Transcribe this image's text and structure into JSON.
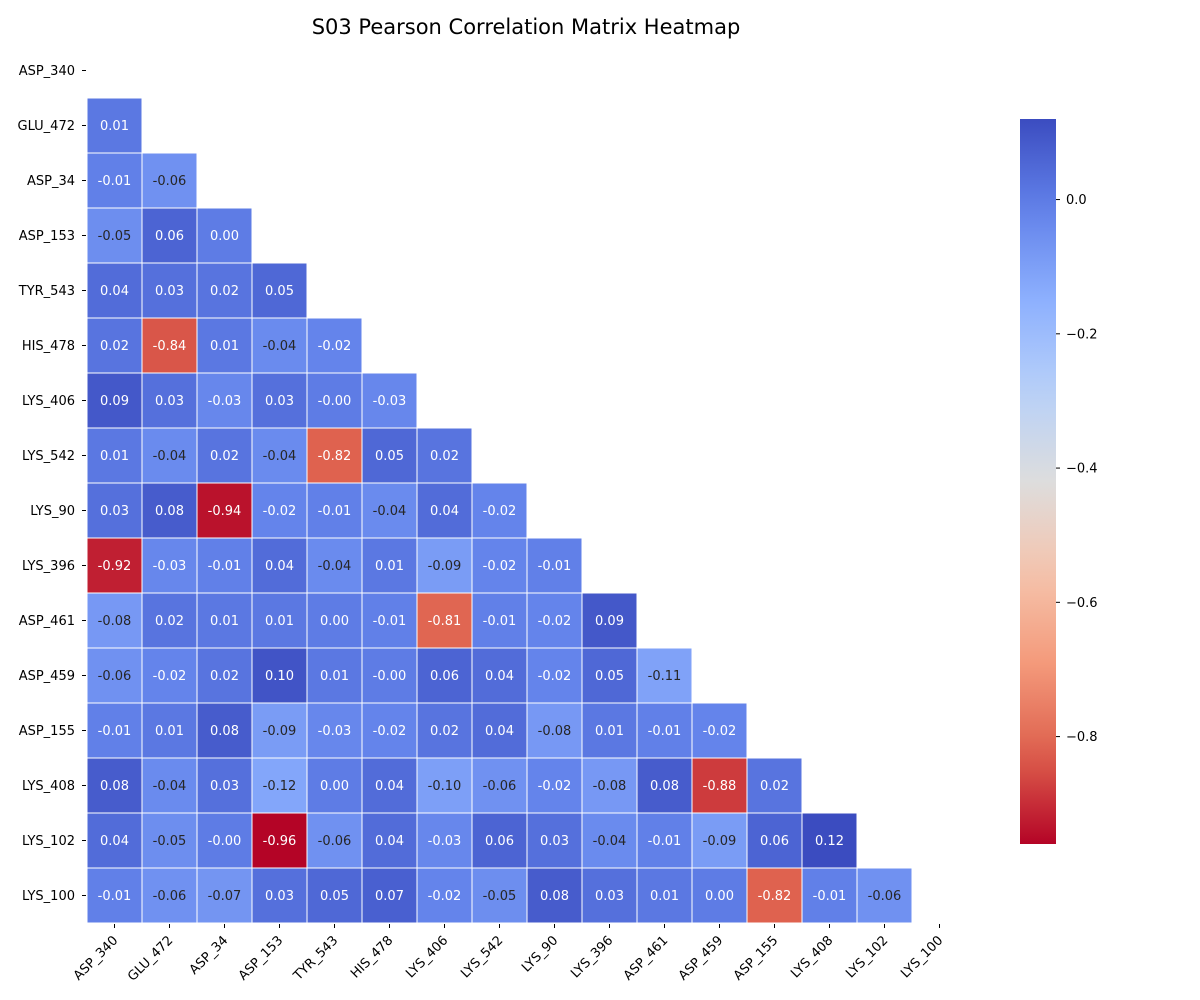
{
  "chart_data": {
    "type": "heatmap",
    "title": "S03 Pearson Correlation Matrix Heatmap",
    "xlabel": "",
    "ylabel": "",
    "labels": [
      "ASP_340",
      "GLU_472",
      "ASP_34",
      "ASP_153",
      "TYR_543",
      "HIS_478",
      "LYS_406",
      "LYS_542",
      "LYS_90",
      "LYS_396",
      "ASP_461",
      "ASP_459",
      "ASP_155",
      "LYS_408",
      "LYS_102",
      "LYS_100"
    ],
    "lower_triangle": [
      [],
      [
        "0.01"
      ],
      [
        "-0.01",
        "-0.06"
      ],
      [
        "-0.05",
        "0.06",
        "0.00"
      ],
      [
        "0.04",
        "0.03",
        "0.02",
        "0.05"
      ],
      [
        "0.02",
        "-0.84",
        "0.01",
        "-0.04",
        "-0.02"
      ],
      [
        "0.09",
        "0.03",
        "-0.03",
        "0.03",
        "-0.00",
        "-0.03"
      ],
      [
        "0.01",
        "-0.04",
        "0.02",
        "-0.04",
        "-0.82",
        "0.05",
        "0.02"
      ],
      [
        "0.03",
        "0.08",
        "-0.94",
        "-0.02",
        "-0.01",
        "-0.04",
        "0.04",
        "-0.02"
      ],
      [
        "-0.92",
        "-0.03",
        "-0.01",
        "0.04",
        "-0.04",
        "0.01",
        "-0.09",
        "-0.02",
        "-0.01"
      ],
      [
        "-0.08",
        "0.02",
        "0.01",
        "0.01",
        "0.00",
        "-0.01",
        "-0.81",
        "-0.01",
        "-0.02",
        "0.09"
      ],
      [
        "-0.06",
        "-0.02",
        "0.02",
        "0.10",
        "0.01",
        "-0.00",
        "0.06",
        "0.04",
        "-0.02",
        "0.05",
        "-0.11"
      ],
      [
        "-0.01",
        "0.01",
        "0.08",
        "-0.09",
        "-0.03",
        "-0.02",
        "0.02",
        "0.04",
        "-0.08",
        "0.01",
        "-0.01",
        "-0.02"
      ],
      [
        "0.08",
        "-0.04",
        "0.03",
        "-0.12",
        "0.00",
        "0.04",
        "-0.10",
        "-0.06",
        "-0.02",
        "-0.08",
        "0.08",
        "-0.88",
        "0.02"
      ],
      [
        "0.04",
        "-0.05",
        "-0.00",
        "-0.96",
        "-0.06",
        "0.04",
        "-0.03",
        "0.06",
        "0.03",
        "-0.04",
        "-0.01",
        "-0.09",
        "0.06",
        "0.12"
      ],
      [
        "-0.01",
        "-0.06",
        "-0.07",
        "0.03",
        "0.05",
        "0.07",
        "-0.02",
        "-0.05",
        "0.08",
        "0.03",
        "0.01",
        "0.00",
        "-0.82",
        "-0.01",
        "-0.06"
      ]
    ],
    "colorbar": {
      "min": -0.96,
      "max": 0.12,
      "ticks": [
        0.0,
        -0.2,
        -0.4,
        -0.6,
        -0.8
      ],
      "tick_labels": [
        "0.0",
        "−0.2",
        "−0.4",
        "−0.6",
        "−0.8"
      ],
      "colormap": "coolwarm_r"
    },
    "grid": true,
    "legend": "colorbar-right"
  }
}
